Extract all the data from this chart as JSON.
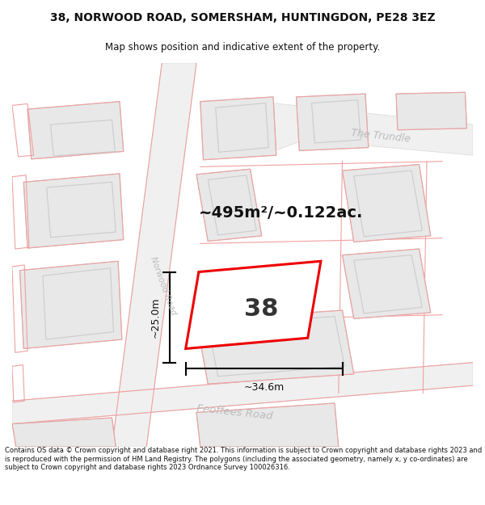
{
  "title": "38, NORWOOD ROAD, SOMERSHAM, HUNTINGDON, PE28 3EZ",
  "subtitle": "Map shows position and indicative extent of the property.",
  "area_text": "~495m²/~0.122ac.",
  "number_label": "38",
  "width_label": "~34.6m",
  "height_label": "~25.0m",
  "road_label_norwood": "Norwood Road",
  "road_label_feoffees": "Feoffees Road",
  "road_label_trundle": "The Trundle",
  "footer_text": "Contains OS data © Crown copyright and database right 2021. This information is subject to Crown copyright and database rights 2023 and is reproduced with the permission of HM Land Registry. The polygons (including the associated geometry, namely x, y co-ordinates) are subject to Crown copyright and database rights 2023 Ordnance Survey 100026316.",
  "bg_color": "#ffffff",
  "map_bg": "#ffffff",
  "block_fill": "#e8e8e8",
  "block_stroke": "#cccccc",
  "pink_stroke": "#f0a0a0",
  "plot_stroke": "#ee0000",
  "plot_fill": "#ffffff",
  "title_color": "#111111",
  "footer_color": "#111111",
  "road_text_color": "#bbbbbb",
  "arrow_color": "#000000",
  "road_fill": "#f5f5f5",
  "road_edge": "#dddddd"
}
